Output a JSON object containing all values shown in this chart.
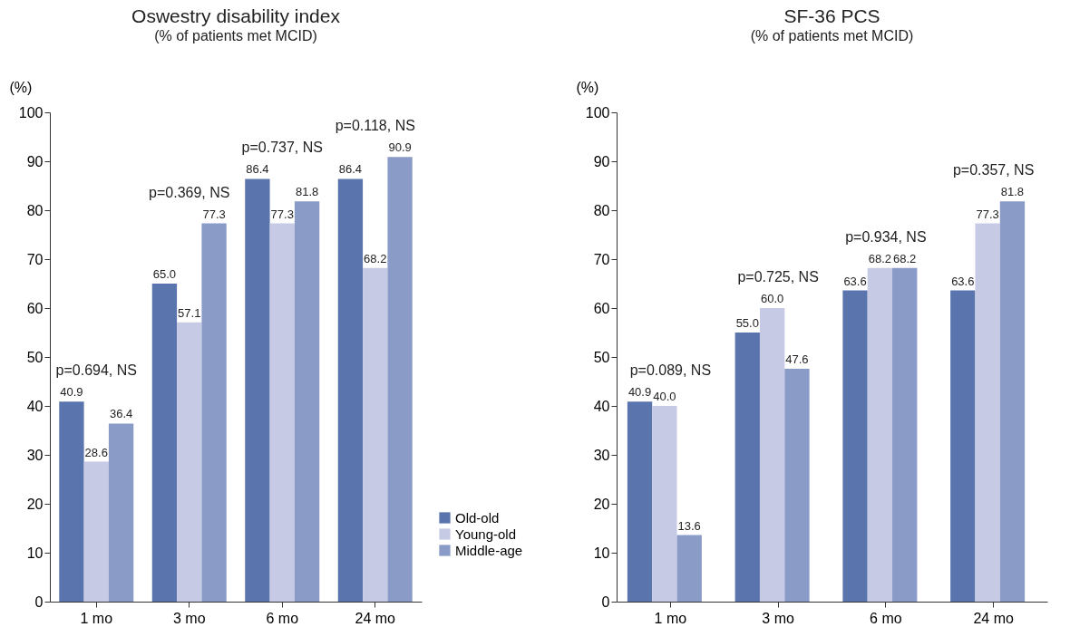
{
  "chart_data": [
    {
      "type": "bar",
      "title": "Oswestry disability index",
      "subtitle": "(% of patients met MCID)",
      "ylabel": "(%)",
      "categories": [
        "1 mo",
        "3 mo",
        "6 mo",
        "24 mo"
      ],
      "series": [
        {
          "name": "Old-old",
          "color": "#5a74ad",
          "values": [
            40.9,
            65.0,
            86.4,
            86.4
          ]
        },
        {
          "name": "Young-old",
          "color": "#c6cae4",
          "values": [
            28.6,
            57.1,
            77.3,
            68.2
          ]
        },
        {
          "name": "Middle-age",
          "color": "#8a9bc7",
          "values": [
            36.4,
            77.3,
            81.8,
            90.9
          ]
        }
      ],
      "value_labels": [
        [
          "40.9",
          "65.0",
          "86.4",
          "86.4"
        ],
        [
          "28.6",
          "57.1",
          "77.3",
          "68.2"
        ],
        [
          "36.4",
          "77.3",
          "81.8",
          "90.9"
        ]
      ],
      "ylim": [
        0,
        100
      ],
      "yticks": [
        0,
        10,
        20,
        30,
        40,
        50,
        60,
        70,
        80,
        90,
        100
      ],
      "grid": false,
      "legend": "bottom right",
      "annotations": [
        "p=0.694, NS",
        "p=0.369, NS",
        "p=0.737, NS",
        "p=0.118, NS"
      ]
    },
    {
      "type": "bar",
      "title": "SF-36 PCS",
      "subtitle": "(% of patients met MCID)",
      "ylabel": "(%)",
      "categories": [
        "1 mo",
        "3 mo",
        "6 mo",
        "24 mo"
      ],
      "series": [
        {
          "color": "#5a74ad",
          "values": [
            40.9,
            55.0,
            63.6,
            63.6
          ]
        },
        {
          "color": "#c6cae4",
          "values": [
            40.0,
            60.0,
            68.2,
            77.3
          ]
        },
        {
          "color": "#8a9bc7",
          "values": [
            13.6,
            47.6,
            68.2,
            81.8
          ]
        }
      ],
      "value_labels": [
        [
          "40.9",
          "55.0",
          "63.6",
          "63.6"
        ],
        [
          "40.0",
          "60.0",
          "68.2",
          "77.3"
        ],
        [
          "13.6",
          "47.6",
          "68.2",
          "81.8"
        ]
      ],
      "ylim": [
        0,
        100
      ],
      "yticks": [
        0,
        10,
        20,
        30,
        40,
        50,
        60,
        70,
        80,
        90,
        100
      ],
      "grid": false,
      "legend": false,
      "annotations": [
        "p=0.089, NS",
        "p=0.725, NS",
        "p=0.934, NS",
        "p=0.357, NS"
      ]
    }
  ]
}
